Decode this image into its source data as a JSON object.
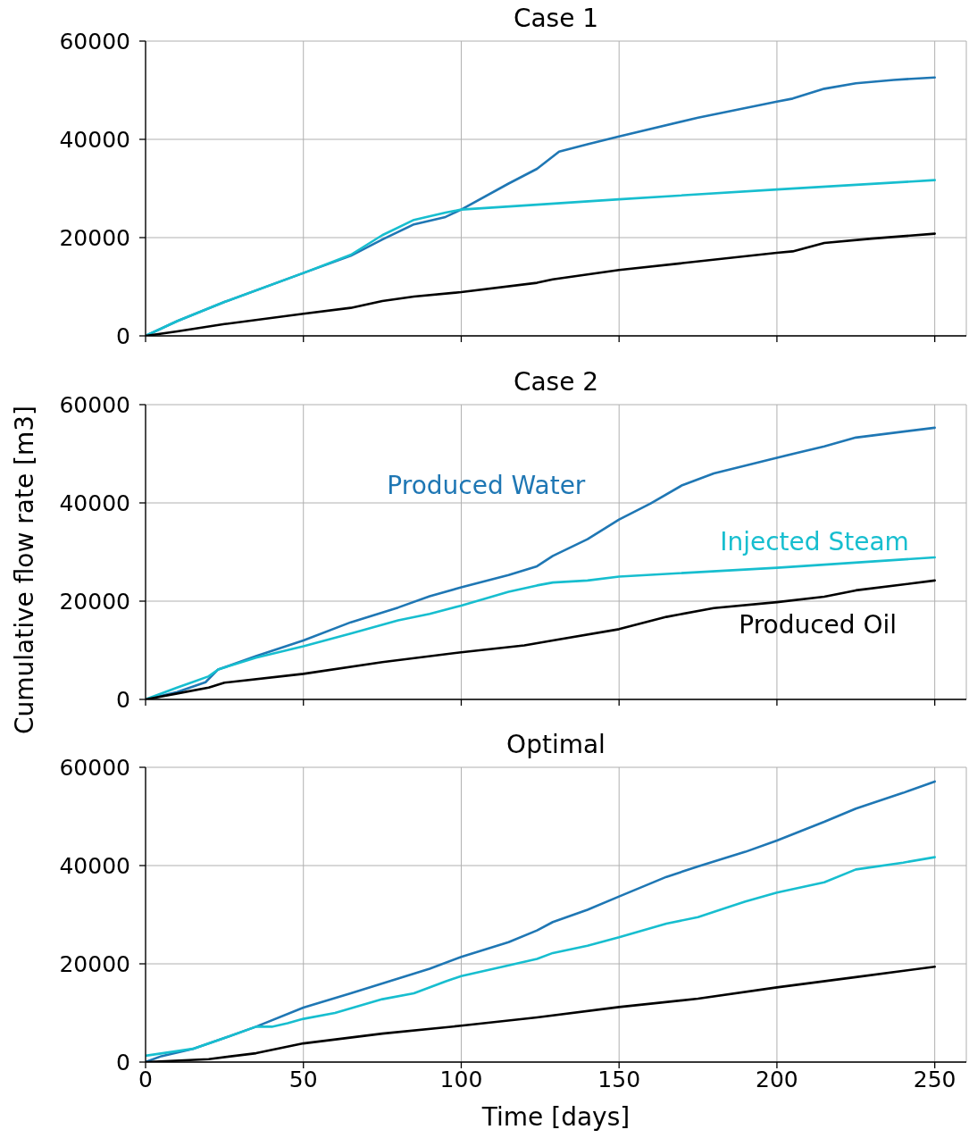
{
  "chart_data": [
    {
      "type": "line",
      "title": "Case 1",
      "xlim": [
        0,
        260
      ],
      "xticks": [
        0,
        50,
        100,
        150,
        200,
        250
      ],
      "ylim": [
        0,
        60000
      ],
      "yticks": [
        0,
        20000,
        40000,
        60000
      ],
      "grid": true,
      "tick_labels": "y",
      "series": [
        {
          "color": "#1f77b4",
          "x": [
            0,
            10,
            25,
            50,
            65,
            75,
            85,
            95,
            100,
            115,
            124,
            131,
            140,
            150,
            175,
            200,
            205,
            215,
            225,
            237,
            250
          ],
          "values": [
            0,
            3000,
            6900,
            12800,
            16300,
            19600,
            22700,
            24200,
            25700,
            31000,
            34000,
            37500,
            39000,
            40600,
            44400,
            47700,
            48300,
            50300,
            51400,
            52100,
            52600
          ]
        },
        {
          "color": "#17becf",
          "x": [
            0,
            10,
            25,
            50,
            65,
            75,
            85,
            95,
            100,
            124,
            150,
            200,
            250
          ],
          "values": [
            0,
            3000,
            6900,
            12800,
            16500,
            20500,
            23600,
            25100,
            25700,
            26700,
            27800,
            29800,
            31700
          ]
        },
        {
          "color": "#000000",
          "x": [
            0,
            10,
            25,
            50,
            65,
            75,
            85,
            100,
            124,
            129,
            150,
            200,
            205,
            215,
            230,
            250
          ],
          "values": [
            0,
            900,
            2400,
            4500,
            5700,
            7100,
            8000,
            8900,
            10800,
            11500,
            13400,
            16900,
            17200,
            18900,
            19800,
            20800
          ]
        }
      ]
    },
    {
      "type": "line",
      "title": "Case 2",
      "ylabel": "Cumulative flow rate [m3]",
      "xlim": [
        0,
        260
      ],
      "xticks": [
        0,
        50,
        100,
        150,
        200,
        250
      ],
      "ylim": [
        0,
        60000
      ],
      "yticks": [
        0,
        20000,
        40000,
        60000
      ],
      "grid": true,
      "tick_labels": "y",
      "series": [
        {
          "name": "Produced Water",
          "color": "#1f77b4",
          "x": [
            0,
            10,
            19,
            23,
            35,
            50,
            65,
            80,
            90,
            100,
            115,
            124,
            129,
            140,
            150,
            160,
            170,
            180,
            200,
            215,
            225,
            250
          ],
          "values": [
            0,
            1500,
            3500,
            6100,
            8800,
            12000,
            15700,
            18700,
            21000,
            22800,
            25300,
            27100,
            29200,
            32600,
            36600,
            39900,
            43600,
            46000,
            49200,
            51500,
            53300,
            55300
          ]
        },
        {
          "name": "Injected Steam",
          "color": "#17becf",
          "x": [
            0,
            10,
            20,
            23,
            35,
            50,
            65,
            80,
            90,
            100,
            115,
            124,
            129,
            140,
            150,
            200,
            250
          ],
          "values": [
            0,
            2400,
            4700,
            6100,
            8500,
            10800,
            13400,
            16100,
            17400,
            19100,
            21900,
            23200,
            23800,
            24200,
            25000,
            26800,
            28900
          ]
        },
        {
          "name": "Produced Oil",
          "color": "#000000",
          "x": [
            0,
            10,
            20,
            25,
            50,
            75,
            100,
            120,
            129,
            150,
            165,
            180,
            200,
            215,
            225,
            250
          ],
          "values": [
            0,
            1200,
            2400,
            3400,
            5200,
            7600,
            9600,
            11000,
            12000,
            14300,
            16800,
            18600,
            19800,
            20900,
            22200,
            24200
          ]
        }
      ]
    },
    {
      "type": "line",
      "title": "Optimal",
      "xlabel": "Time [days]",
      "xlim": [
        0,
        260
      ],
      "xticks": [
        0,
        50,
        100,
        150,
        200,
        250
      ],
      "ylim": [
        0,
        60000
      ],
      "yticks": [
        0,
        20000,
        40000,
        60000
      ],
      "grid": true,
      "series": [
        {
          "color": "#1f77b4",
          "x": [
            0,
            5,
            15,
            25,
            35,
            50,
            65,
            80,
            90,
            100,
            115,
            124,
            129,
            140,
            150,
            165,
            175,
            190,
            200,
            215,
            225,
            240,
            250
          ],
          "values": [
            0,
            1200,
            2700,
            4900,
            7200,
            11100,
            14000,
            17000,
            19000,
            21400,
            24400,
            26800,
            28500,
            31000,
            33700,
            37700,
            39800,
            42800,
            45100,
            48900,
            51600,
            54800,
            57100
          ]
        },
        {
          "color": "#17becf",
          "x": [
            0,
            15,
            25,
            35,
            40,
            45,
            50,
            60,
            75,
            85,
            95,
            100,
            115,
            124,
            129,
            140,
            150,
            165,
            175,
            190,
            200,
            215,
            225,
            240,
            250
          ],
          "values": [
            1300,
            2700,
            4900,
            7200,
            7200,
            7900,
            8800,
            10000,
            12800,
            14000,
            16400,
            17500,
            19700,
            21000,
            22200,
            23700,
            25400,
            28200,
            29500,
            32700,
            34500,
            36600,
            39200,
            40600,
            41700
          ]
        },
        {
          "color": "#000000",
          "x": [
            0,
            20,
            35,
            50,
            75,
            100,
            124,
            150,
            175,
            200,
            225,
            250
          ],
          "values": [
            0,
            600,
            1800,
            3800,
            5800,
            7400,
            9100,
            11200,
            12900,
            15200,
            17300,
            19400
          ]
        }
      ]
    }
  ]
}
